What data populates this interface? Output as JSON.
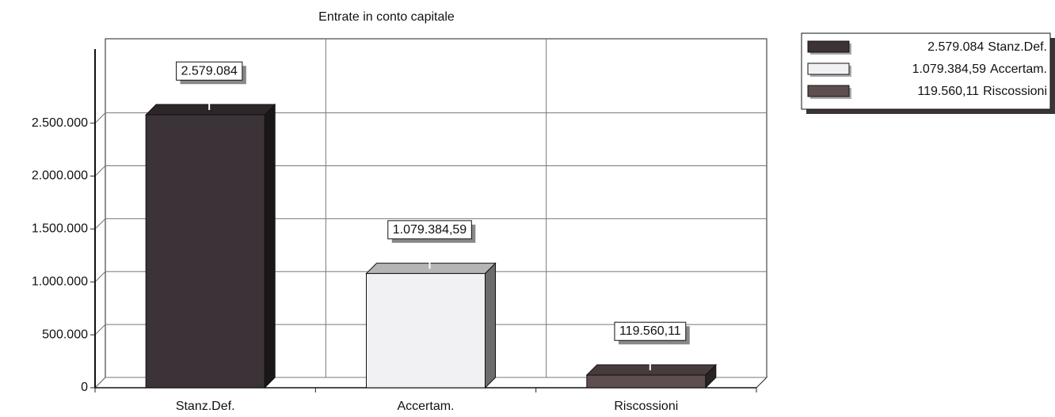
{
  "chart_data": {
    "type": "bar3d",
    "title": "Entrate in conto capitale",
    "categories": [
      "Stanz.Def.",
      "Accertam.",
      "Riscossioni"
    ],
    "values": [
      2579084,
      1079384.59,
      119560.11
    ],
    "value_labels": [
      "2.579.084",
      "1.079.384,59",
      "119.560,11"
    ],
    "colors": [
      "#3b3337",
      "#f1f1f3",
      "#5e4e50"
    ],
    "ylim": [
      0,
      3200000
    ],
    "yticks": [
      0,
      {
        "value": 500000,
        "label": "500.000"
      },
      {
        "value": 1000000,
        "label": "1.000.000"
      },
      {
        "value": 1500000,
        "label": "1.500.000"
      },
      {
        "value": 2000000,
        "label": "2.000.000"
      },
      {
        "value": 2500000,
        "label": "2.500.000"
      }
    ],
    "grid": true,
    "legend": "top-right"
  }
}
